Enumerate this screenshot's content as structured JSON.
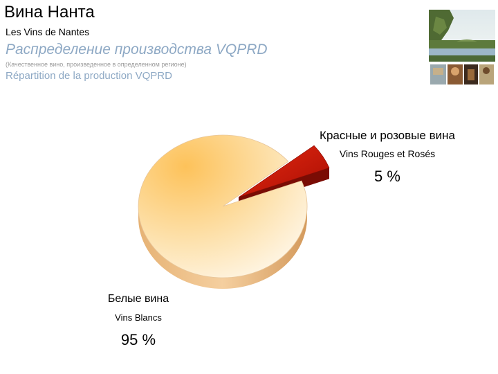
{
  "header": {
    "title_ru": "Вина Нанта",
    "title_fr": "Les Vins de Nantes",
    "subtitle_ru": "Распределение производства VQPRD",
    "note_ru": "(Качественное вино, произведенное в определенном регионе)",
    "subtitle_fr": "Répartition de la production VQPRD"
  },
  "chart_data": {
    "type": "pie",
    "title": "",
    "categories": [
      "Красные и розовые вина",
      "Белые вина"
    ],
    "categories_fr": [
      "Vins Rouges et Rosés",
      "Vins Blancs"
    ],
    "values": [
      5,
      95
    ],
    "value_labels": [
      "5 %",
      "95 %"
    ],
    "exploded": [
      true,
      false
    ],
    "colors": [
      "#cc1a0a",
      "#fcd899"
    ],
    "style": "3d"
  }
}
